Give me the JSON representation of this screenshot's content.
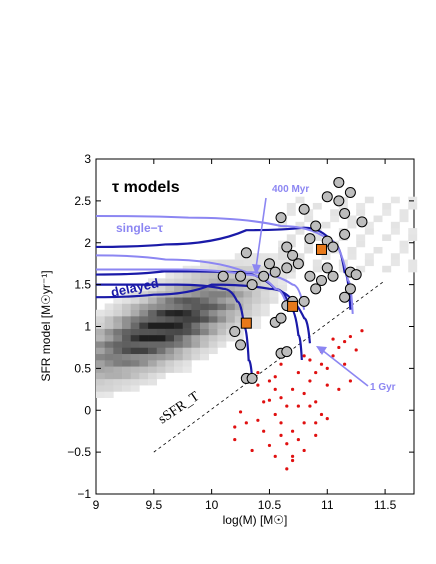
{
  "chart_data": {
    "type": "scatter",
    "title": "τ models",
    "xlabel": "log(M) [M☉]",
    "ylabel": "SFR model [M☉yr⁻¹]",
    "xlim": [
      9,
      11.75
    ],
    "ylim": [
      -1,
      3
    ],
    "xticks": [
      "9",
      "9.5",
      "10",
      "10.5",
      "11",
      "11.5"
    ],
    "yticks": [
      "−1",
      "−0.5",
      "0",
      "0.5",
      "1",
      "1.5",
      "2",
      "2.5",
      "3"
    ],
    "grid": false,
    "annotations": {
      "single_tau": "single−τ",
      "delayed": "delayed",
      "age_400": "400 Myr",
      "age_1gyr": "1 Gyr",
      "ssfr_label": "sSFR_T"
    },
    "colors": {
      "delayed": "#1a1aa8",
      "single_tau": "#8c86f2",
      "grey_points": "#bdbdbd",
      "orange_squares": "#e8791a",
      "red_points": "#e01010",
      "density": "#333333"
    },
    "series": [
      {
        "name": "grey points",
        "kind": "circle",
        "points": [
          [
            10.3,
            0.38
          ],
          [
            10.35,
            0.38
          ],
          [
            10.25,
            0.78
          ],
          [
            10.2,
            0.94
          ],
          [
            10.6,
            0.68
          ],
          [
            10.65,
            0.7
          ],
          [
            10.55,
            1.05
          ],
          [
            10.6,
            1.1
          ],
          [
            10.65,
            1.25
          ],
          [
            10.7,
            1.3
          ],
          [
            10.8,
            1.3
          ],
          [
            10.45,
            1.6
          ],
          [
            10.5,
            1.75
          ],
          [
            10.55,
            1.65
          ],
          [
            10.65,
            1.7
          ],
          [
            10.7,
            1.85
          ],
          [
            10.75,
            1.75
          ],
          [
            10.85,
            1.6
          ],
          [
            10.9,
            1.45
          ],
          [
            10.95,
            1.55
          ],
          [
            11.0,
            1.7
          ],
          [
            11.05,
            1.6
          ],
          [
            11.15,
            1.35
          ],
          [
            11.2,
            1.45
          ],
          [
            11.2,
            1.65
          ],
          [
            11.25,
            1.62
          ],
          [
            11.0,
            2.02
          ],
          [
            11.05,
            1.95
          ],
          [
            10.85,
            2.05
          ],
          [
            10.9,
            2.2
          ],
          [
            10.8,
            2.4
          ],
          [
            10.65,
            1.95
          ],
          [
            10.6,
            2.3
          ],
          [
            10.3,
            1.88
          ],
          [
            10.25,
            1.6
          ],
          [
            10.1,
            1.6
          ],
          [
            10.35,
            1.5
          ],
          [
            11.1,
            2.5
          ],
          [
            11.15,
            2.35
          ],
          [
            11.2,
            2.6
          ],
          [
            11.3,
            2.25
          ],
          [
            11.15,
            2.1
          ],
          [
            11.0,
            2.55
          ],
          [
            11.1,
            2.72
          ]
        ]
      },
      {
        "name": "orange squares",
        "kind": "square",
        "points": [
          [
            10.3,
            1.04
          ],
          [
            10.7,
            1.24
          ],
          [
            10.95,
            1.92
          ]
        ]
      },
      {
        "name": "red points",
        "kind": "dot",
        "points": [
          [
            10.4,
            0.3
          ],
          [
            10.45,
            0.1
          ],
          [
            10.5,
            0.35
          ],
          [
            10.55,
            0.25
          ],
          [
            10.6,
            0.15
          ],
          [
            10.55,
            -0.05
          ],
          [
            10.6,
            -0.15
          ],
          [
            10.65,
            0.05
          ],
          [
            10.7,
            -0.25
          ],
          [
            10.65,
            -0.4
          ],
          [
            10.7,
            -0.55
          ],
          [
            10.75,
            -0.35
          ],
          [
            10.8,
            -0.15
          ],
          [
            10.85,
            0.05
          ],
          [
            10.8,
            0.2
          ],
          [
            10.85,
            0.35
          ],
          [
            10.9,
            0.45
          ],
          [
            10.95,
            0.55
          ],
          [
            11.0,
            0.5
          ],
          [
            11.05,
            0.65
          ],
          [
            11.1,
            0.75
          ],
          [
            11.15,
            0.82
          ],
          [
            11.2,
            0.88
          ],
          [
            11.25,
            0.72
          ],
          [
            11.3,
            0.95
          ],
          [
            11.05,
            0.85
          ],
          [
            10.75,
            0.45
          ],
          [
            10.9,
            0.1
          ],
          [
            10.95,
            -0.05
          ],
          [
            11.0,
            0.3
          ],
          [
            10.7,
            -0.6
          ],
          [
            10.6,
            -0.3
          ],
          [
            10.4,
            -0.12
          ],
          [
            10.45,
            -0.25
          ],
          [
            10.5,
            -0.42
          ],
          [
            10.35,
            -0.48
          ],
          [
            10.3,
            -0.15
          ],
          [
            10.25,
            -0.02
          ],
          [
            10.2,
            -0.2
          ],
          [
            10.55,
            0.4
          ],
          [
            10.6,
            0.55
          ],
          [
            10.8,
            -0.48
          ],
          [
            10.9,
            -0.3
          ],
          [
            11.0,
            -0.1
          ],
          [
            11.1,
            0.25
          ],
          [
            10.5,
            0.12
          ],
          [
            10.4,
            0.45
          ],
          [
            10.2,
            -0.35
          ],
          [
            10.65,
            -0.7
          ],
          [
            10.55,
            -0.55
          ],
          [
            10.85,
            0.6
          ],
          [
            11.15,
            0.55
          ],
          [
            11.2,
            0.35
          ],
          [
            10.95,
            0.7
          ],
          [
            10.75,
            0.05
          ],
          [
            10.7,
            0.25
          ],
          [
            10.9,
            -0.15
          ],
          [
            10.8,
            0.65
          ]
        ]
      }
    ],
    "tracks": [
      {
        "name": "delayed",
        "style": "delayed",
        "points": [
          [
            9,
            1.5
          ],
          [
            9.7,
            1.5
          ],
          [
            10.1,
            1.45
          ],
          [
            10.22,
            1.3
          ],
          [
            10.28,
            1.0
          ],
          [
            10.32,
            0.6
          ],
          [
            10.35,
            0.38
          ]
        ]
      },
      {
        "name": "delayed",
        "style": "delayed",
        "points": [
          [
            9,
            1.62
          ],
          [
            9.6,
            1.66
          ],
          [
            10.2,
            1.65
          ],
          [
            10.55,
            1.45
          ],
          [
            10.68,
            1.22
          ],
          [
            10.75,
            0.9
          ],
          [
            10.78,
            0.6
          ]
        ]
      },
      {
        "name": "delayed",
        "style": "delayed",
        "points": [
          [
            9,
            1.95
          ],
          [
            9.6,
            1.98
          ],
          [
            10.3,
            2.15
          ],
          [
            10.8,
            2.18
          ],
          [
            11.05,
            2.0
          ],
          [
            11.15,
            1.65
          ],
          [
            11.2,
            1.2
          ]
        ]
      },
      {
        "name": "delayed",
        "style": "delayed",
        "points": [
          [
            9,
            1.35
          ],
          [
            9.5,
            1.38
          ],
          [
            10.0,
            1.5
          ],
          [
            10.5,
            1.45
          ],
          [
            10.8,
            1.1
          ],
          [
            10.85,
            0.8
          ]
        ]
      },
      {
        "name": "single",
        "style": "single",
        "points": [
          [
            9,
            2.32
          ],
          [
            9.8,
            2.3
          ],
          [
            10.6,
            2.2
          ],
          [
            11.0,
            2.05
          ],
          [
            11.18,
            1.55
          ],
          [
            11.22,
            1.15
          ]
        ]
      },
      {
        "name": "single",
        "style": "single",
        "points": [
          [
            9,
            1.85
          ],
          [
            9.6,
            1.8
          ],
          [
            10.3,
            1.65
          ],
          [
            10.7,
            1.5
          ],
          [
            10.8,
            1.2
          ]
        ]
      },
      {
        "name": "single",
        "style": "single",
        "points": [
          [
            9,
            1.68
          ],
          [
            9.7,
            1.68
          ],
          [
            10.3,
            1.62
          ],
          [
            10.55,
            1.45
          ],
          [
            10.65,
            1.25
          ]
        ]
      }
    ],
    "ssfr_line": [
      [
        9.5,
        -0.5
      ],
      [
        11.5,
        1.55
      ]
    ]
  }
}
